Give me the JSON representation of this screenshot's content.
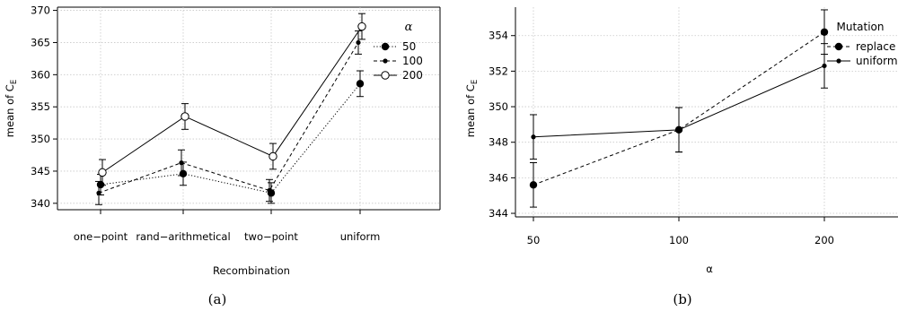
{
  "chart_data": [
    {
      "type": "line",
      "caption": "(a)",
      "xlabel": "Recombination",
      "ylabel": "mean of C",
      "ylabel_sub": "E",
      "categories": [
        "one−point",
        "rand−arithmetical",
        "two−point",
        "uniform"
      ],
      "ylim": [
        339,
        370.5
      ],
      "yticks": [
        "340",
        "345",
        "350",
        "355",
        "360",
        "365",
        "370"
      ],
      "grid": true,
      "legend": {
        "title": "α",
        "position": "top-right"
      },
      "series": [
        {
          "name": "50",
          "values": [
            342.9,
            344.6,
            341.6,
            358.6
          ],
          "err": [
            1.6,
            1.8,
            1.6,
            2.0
          ],
          "style": "dotted",
          "marker": "filled-large"
        },
        {
          "name": "100",
          "values": [
            341.6,
            346.3,
            342.0,
            365.0
          ],
          "err": [
            1.8,
            2.0,
            1.7,
            1.8
          ],
          "style": "dashed",
          "marker": "filled-small"
        },
        {
          "name": "200",
          "values": [
            344.8,
            353.5,
            347.3,
            367.5
          ],
          "err": [
            2.0,
            2.0,
            2.0,
            2.0
          ],
          "style": "solid",
          "marker": "open"
        }
      ]
    },
    {
      "type": "line",
      "caption": "(b)",
      "xlabel": "α",
      "ylabel": "mean of C",
      "ylabel_sub": "E",
      "categories": [
        "50",
        "100",
        "200"
      ],
      "ylim": [
        343.8,
        355.6
      ],
      "yticks": [
        "344",
        "346",
        "348",
        "350",
        "352",
        "354"
      ],
      "grid": true,
      "legend": {
        "title": "Mutation",
        "position": "top-right"
      },
      "series": [
        {
          "name": "replace",
          "values": [
            345.6,
            348.7,
            354.2
          ],
          "err": [
            1.25,
            1.25,
            1.25
          ],
          "style": "dashed",
          "marker": "filled-large"
        },
        {
          "name": "uniform",
          "values": [
            348.3,
            348.7,
            352.3
          ],
          "err": [
            1.25,
            1.25,
            1.25
          ],
          "style": "solid",
          "marker": "filled-small"
        }
      ]
    }
  ]
}
